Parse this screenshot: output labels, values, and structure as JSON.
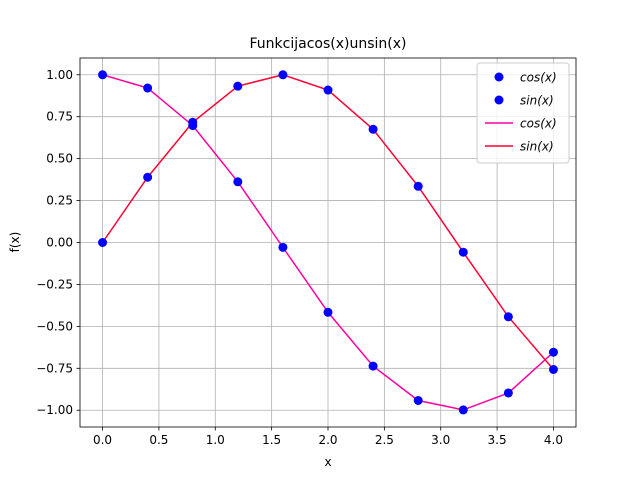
{
  "chart_data": {
    "type": "line",
    "title": "Funkcija$cos(x)un$$sin(x)$",
    "title_display": "Funkcijacos(x)unsin(x)",
    "xlabel": "x",
    "ylabel": "f(x)",
    "xlim": [
      -0.2,
      4.2
    ],
    "ylim": [
      -1.1,
      1.1
    ],
    "xticks": [
      0.0,
      0.5,
      1.0,
      1.5,
      2.0,
      2.5,
      3.0,
      3.5,
      4.0
    ],
    "xtick_labels": [
      "0.0",
      "0.5",
      "1.0",
      "1.5",
      "2.0",
      "2.5",
      "3.0",
      "3.5",
      "4.0"
    ],
    "yticks": [
      1.0,
      0.75,
      0.5,
      0.25,
      0.0,
      -0.25,
      -0.5,
      -0.75,
      -1.0
    ],
    "ytick_labels": [
      "1.00",
      "0.75",
      "0.50",
      "0.25",
      "0.00",
      "−0.25",
      "−0.50",
      "−0.75",
      "−1.00"
    ],
    "grid": true,
    "legend_position": "top-right",
    "x": [
      0.0,
      0.4,
      0.8,
      1.2,
      1.6,
      2.0,
      2.4,
      2.8,
      3.2,
      3.6,
      4.0
    ],
    "series": [
      {
        "name": "cos(x)",
        "kind": "scatter",
        "color": "#0000ff",
        "values": [
          1.0,
          0.921,
          0.697,
          0.362,
          -0.029,
          -0.416,
          -0.737,
          -0.942,
          -0.998,
          -0.897,
          -0.654
        ]
      },
      {
        "name": "sin(x)",
        "kind": "scatter",
        "color": "#0000ff",
        "values": [
          0.0,
          0.389,
          0.717,
          0.932,
          1.0,
          0.909,
          0.675,
          0.335,
          -0.058,
          -0.443,
          -0.757
        ]
      },
      {
        "name": "cos(x)",
        "kind": "line",
        "color": "#ff00a0",
        "values": [
          1.0,
          0.921,
          0.697,
          0.362,
          -0.029,
          -0.416,
          -0.737,
          -0.942,
          -0.998,
          -0.897,
          -0.654
        ]
      },
      {
        "name": "sin(x)",
        "kind": "line",
        "color": "#ff0033",
        "values": [
          0.0,
          0.389,
          0.717,
          0.932,
          1.0,
          0.909,
          0.675,
          0.335,
          -0.058,
          -0.443,
          -0.757
        ]
      }
    ]
  }
}
